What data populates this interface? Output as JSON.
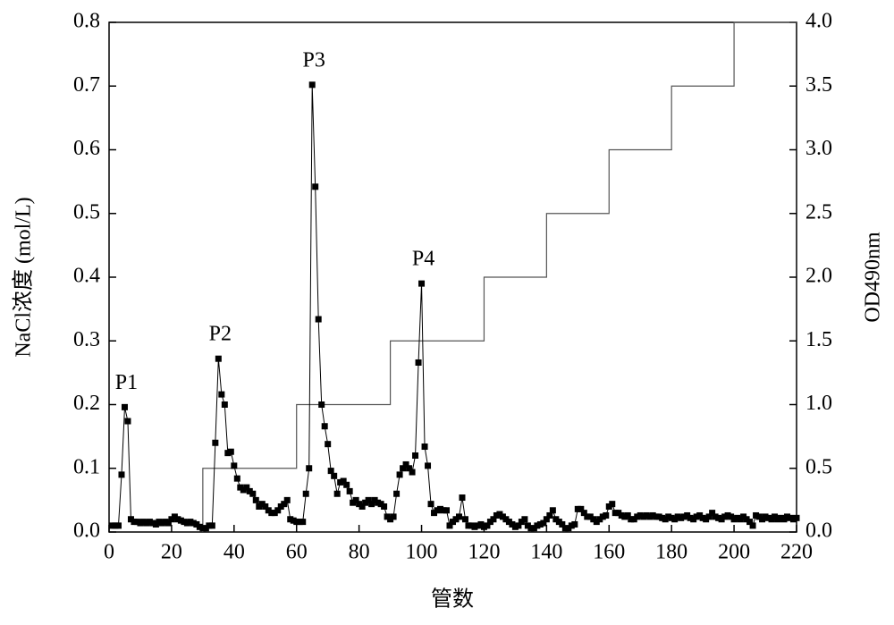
{
  "chart_data": {
    "type": "line",
    "xlabel": "管数",
    "ylabel": "NaCl浓度 (mol/L)",
    "y2label": "OD490nm",
    "xlim": [
      0,
      220
    ],
    "xticks": [
      0,
      20,
      40,
      60,
      80,
      100,
      120,
      140,
      160,
      180,
      200,
      220
    ],
    "ylim": [
      0,
      0.8
    ],
    "yticks": [
      {
        "value": 0,
        "label": "0.0"
      },
      0.1,
      0.2,
      0.3,
      0.4,
      0.5,
      0.6,
      0.7,
      0.8
    ],
    "y2lim": [
      0,
      4
    ],
    "y2ticks": [
      {
        "value": 0,
        "label": "0.0"
      },
      0.5,
      {
        "value": 1,
        "label": "1.0"
      },
      1.5,
      {
        "value": 2,
        "label": "2.0"
      },
      2.5,
      {
        "value": 3,
        "label": "3.0"
      },
      3.5,
      {
        "value": 4,
        "label": "4.0"
      }
    ],
    "annotations": [
      "P1",
      "P2",
      "P3",
      "P4"
    ],
    "series": [
      {
        "color": "#555555",
        "step": "post",
        "x": [
          30,
          30,
          60,
          90,
          120,
          140,
          160,
          180,
          200,
          220
        ],
        "values": [
          0,
          0.1,
          0.2,
          0.3,
          0.4,
          0.5,
          0.6,
          0.7,
          0.8,
          0.8
        ]
      },
      {
        "color": "#000000",
        "axis": "y2",
        "marker": "square",
        "x": [
          1,
          2,
          3,
          4,
          5,
          6,
          7,
          8,
          9,
          10,
          11,
          12,
          13,
          14,
          15,
          16,
          17,
          18,
          19,
          20,
          21,
          22,
          23,
          24,
          25,
          26,
          27,
          28,
          29,
          30,
          31,
          32,
          33,
          34,
          35,
          36,
          37,
          38,
          39,
          40,
          41,
          42,
          43,
          44,
          45,
          46,
          47,
          48,
          49,
          50,
          51,
          52,
          53,
          54,
          55,
          56,
          57,
          58,
          59,
          60,
          61,
          62,
          63,
          64,
          65,
          66,
          67,
          68,
          69,
          70,
          71,
          72,
          73,
          74,
          75,
          76,
          77,
          78,
          79,
          80,
          81,
          82,
          83,
          84,
          85,
          86,
          87,
          88,
          89,
          90,
          91,
          92,
          93,
          94,
          95,
          96,
          97,
          98,
          99,
          100,
          101,
          102,
          103,
          104,
          105,
          106,
          107,
          108,
          109,
          110,
          111,
          112,
          113,
          114,
          115,
          116,
          117,
          118,
          119,
          120,
          121,
          122,
          123,
          124,
          125,
          126,
          127,
          128,
          129,
          130,
          131,
          132,
          133,
          134,
          135,
          136,
          137,
          138,
          139,
          140,
          141,
          142,
          143,
          144,
          145,
          146,
          147,
          148,
          149,
          150,
          151,
          152,
          153,
          154,
          155,
          156,
          157,
          158,
          159,
          160,
          161,
          162,
          163,
          164,
          165,
          166,
          167,
          168,
          169,
          170,
          171,
          172,
          173,
          174,
          175,
          176,
          177,
          178,
          179,
          180,
          181,
          182,
          183,
          184,
          185,
          186,
          187,
          188,
          189,
          190,
          191,
          192,
          193,
          194,
          195,
          196,
          197,
          198,
          199,
          200,
          201,
          202,
          203,
          204,
          205,
          206,
          207,
          208,
          209,
          210,
          211,
          212,
          213,
          214,
          215,
          216,
          217,
          218,
          219,
          220
        ],
        "values": [
          0.05,
          0.05,
          0.05,
          0.45,
          0.98,
          0.87,
          0.1,
          0.08,
          0.08,
          0.07,
          0.08,
          0.07,
          0.08,
          0.07,
          0.06,
          0.08,
          0.07,
          0.08,
          0.07,
          0.1,
          0.12,
          0.1,
          0.09,
          0.08,
          0.07,
          0.08,
          0.07,
          0.06,
          0.04,
          0.03,
          0.03,
          0.05,
          0.05,
          0.7,
          1.36,
          1.08,
          1.0,
          0.62,
          0.63,
          0.52,
          0.42,
          0.35,
          0.33,
          0.35,
          0.32,
          0.3,
          0.25,
          0.2,
          0.22,
          0.2,
          0.17,
          0.15,
          0.15,
          0.17,
          0.2,
          0.22,
          0.25,
          0.1,
          0.09,
          0.08,
          0.08,
          0.08,
          0.3,
          0.5,
          3.51,
          2.71,
          1.67,
          1.0,
          0.83,
          0.69,
          0.48,
          0.44,
          0.3,
          0.39,
          0.4,
          0.37,
          0.32,
          0.23,
          0.25,
          0.22,
          0.2,
          0.23,
          0.25,
          0.22,
          0.25,
          0.23,
          0.22,
          0.2,
          0.12,
          0.1,
          0.12,
          0.3,
          0.45,
          0.5,
          0.53,
          0.5,
          0.47,
          0.6,
          1.33,
          1.95,
          0.67,
          0.52,
          0.22,
          0.15,
          0.17,
          0.18,
          0.17,
          0.17,
          0.05,
          0.08,
          0.1,
          0.12,
          0.27,
          0.1,
          0.05,
          0.05,
          0.04,
          0.05,
          0.06,
          0.04,
          0.05,
          0.08,
          0.1,
          0.13,
          0.14,
          0.12,
          0.1,
          0.08,
          0.06,
          0.04,
          0.05,
          0.08,
          0.1,
          0.05,
          0.03,
          0.03,
          0.05,
          0.06,
          0.07,
          0.1,
          0.13,
          0.17,
          0.1,
          0.08,
          0.06,
          0.03,
          0.03,
          0.05,
          0.06,
          0.18,
          0.18,
          0.15,
          0.12,
          0.12,
          0.1,
          0.08,
          0.1,
          0.12,
          0.13,
          0.2,
          0.22,
          0.15,
          0.15,
          0.13,
          0.12,
          0.13,
          0.1,
          0.1,
          0.12,
          0.13,
          0.12,
          0.13,
          0.12,
          0.13,
          0.12,
          0.12,
          0.11,
          0.1,
          0.12,
          0.11,
          0.1,
          0.12,
          0.11,
          0.12,
          0.13,
          0.11,
          0.1,
          0.12,
          0.13,
          0.11,
          0.1,
          0.12,
          0.15,
          0.12,
          0.11,
          0.1,
          0.12,
          0.13,
          0.12,
          0.1,
          0.11,
          0.1,
          0.12,
          0.1,
          0.08,
          0.05,
          0.13,
          0.12,
          0.1,
          0.12,
          0.11,
          0.1,
          0.12,
          0.1,
          0.11,
          0.1,
          0.12,
          0.11,
          0.1,
          0.11
        ]
      }
    ]
  }
}
